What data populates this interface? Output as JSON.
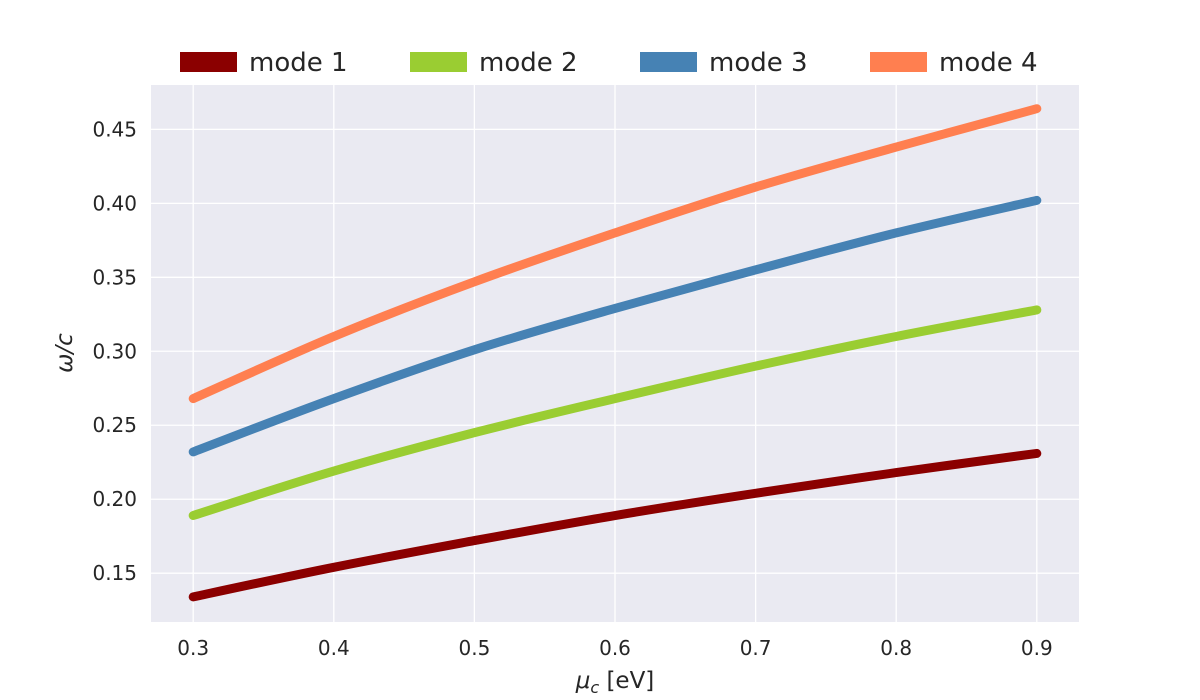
{
  "chart_data": {
    "type": "line",
    "title": "",
    "xlabel": "μc [eV]",
    "ylabel": "ω/c",
    "xlim": [
      0.27,
      0.93
    ],
    "ylim": [
      0.117,
      0.48
    ],
    "x_ticks": [
      0.3,
      0.4,
      0.5,
      0.6,
      0.7,
      0.8,
      0.9
    ],
    "y_ticks": [
      0.15,
      0.2,
      0.25,
      0.3,
      0.35,
      0.4,
      0.45
    ],
    "x_tick_labels": [
      "0.3",
      "0.4",
      "0.5",
      "0.6",
      "0.7",
      "0.8",
      "0.9"
    ],
    "y_tick_labels": [
      "0.15",
      "0.20",
      "0.25",
      "0.30",
      "0.35",
      "0.40",
      "0.45"
    ],
    "grid": true,
    "legend": "top",
    "x": [
      0.3,
      0.4,
      0.5,
      0.6,
      0.7,
      0.8,
      0.9
    ],
    "series": [
      {
        "name": "mode 1",
        "color": "#8B0000",
        "values": [
          0.134,
          0.154,
          0.172,
          0.189,
          0.204,
          0.218,
          0.231
        ]
      },
      {
        "name": "mode 2",
        "color": "#9ACD32",
        "values": [
          0.189,
          0.219,
          0.245,
          0.268,
          0.29,
          0.31,
          0.328
        ]
      },
      {
        "name": "mode 3",
        "color": "#4682B4",
        "values": [
          0.232,
          0.268,
          0.301,
          0.329,
          0.355,
          0.38,
          0.402
        ]
      },
      {
        "name": "mode 4",
        "color": "#FF7F50",
        "values": [
          0.268,
          0.31,
          0.347,
          0.38,
          0.411,
          0.438,
          0.464
        ]
      }
    ]
  }
}
